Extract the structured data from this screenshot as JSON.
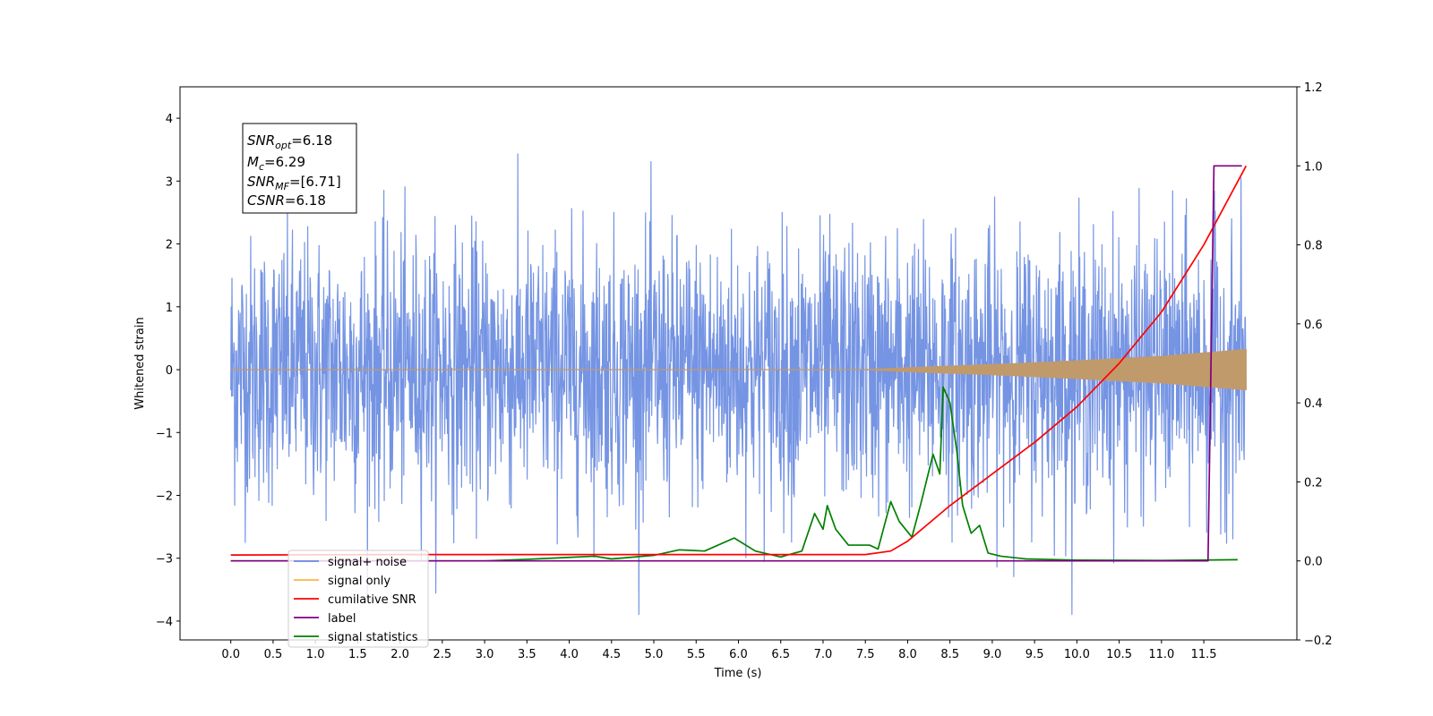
{
  "chart_data": {
    "type": "line",
    "title": "",
    "xlabel": "Time (s)",
    "ylabel": "Whitened strain",
    "xlim": [
      -0.6,
      12.6
    ],
    "ylim": [
      -4.3,
      4.5
    ],
    "y2lim": [
      -0.2,
      1.2
    ],
    "grid": false,
    "legend_position": "lower-left",
    "x_ticks": [
      "0.0",
      "0.5",
      "1.0",
      "1.5",
      "2.0",
      "2.5",
      "3.0",
      "3.5",
      "4.0",
      "4.5",
      "5.0",
      "5.5",
      "6.0",
      "6.5",
      "7.0",
      "7.5",
      "8.0",
      "8.5",
      "9.0",
      "9.5",
      "10.0",
      "10.5",
      "11.0",
      "11.5"
    ],
    "y_ticks": [
      "4",
      "3",
      "2",
      "1",
      "0",
      "−1",
      "−2",
      "−3",
      "−4"
    ],
    "y2_ticks": [
      "1.2",
      "1.0",
      "0.8",
      "0.6",
      "0.4",
      "0.2",
      "0.0",
      "−0.2"
    ],
    "annotations": {
      "snr_opt": {
        "label": "SNR",
        "sub": "opt",
        "value": "=6.18"
      },
      "mc": {
        "label": "M",
        "sub": "c",
        "value": "=6.29"
      },
      "snr_mf": {
        "label": "SNR",
        "sub": "MF",
        "value": "=[6.71]"
      },
      "csnr": {
        "label": "CSNR",
        "value": "=6.18"
      }
    },
    "series": [
      {
        "name": "signal+ noise",
        "color": "#6688e0",
        "axis": "left",
        "description_range": [
          -3.9,
          4.1
        ],
        "x_range": [
          0.0,
          12.0
        ]
      },
      {
        "name": "signal only",
        "color": "#ffb347",
        "axis": "left",
        "envelope": [
          [
            0.0,
            0.0
          ],
          [
            7.5,
            0.0
          ],
          [
            8.0,
            0.03
          ],
          [
            9.0,
            0.08
          ],
          [
            10.0,
            0.14
          ],
          [
            11.0,
            0.21
          ],
          [
            12.0,
            0.32
          ]
        ]
      },
      {
        "name": "cumilative SNR",
        "color": "#ff0000",
        "axis": "right",
        "points": [
          [
            0.0,
            0.015
          ],
          [
            2.0,
            0.016
          ],
          [
            4.0,
            0.016
          ],
          [
            6.0,
            0.016
          ],
          [
            7.5,
            0.016
          ],
          [
            7.8,
            0.025
          ],
          [
            8.0,
            0.05
          ],
          [
            8.5,
            0.14
          ],
          [
            9.0,
            0.22
          ],
          [
            9.5,
            0.3
          ],
          [
            10.0,
            0.39
          ],
          [
            10.5,
            0.5
          ],
          [
            11.0,
            0.63
          ],
          [
            11.5,
            0.8
          ],
          [
            12.0,
            1.0
          ]
        ]
      },
      {
        "name": "label",
        "color": "#800080",
        "axis": "right",
        "points": [
          [
            0.0,
            0.0
          ],
          [
            11.55,
            0.0
          ],
          [
            11.62,
            1.0
          ],
          [
            11.95,
            1.0
          ]
        ]
      },
      {
        "name": "signal statistics",
        "color": "#008000",
        "axis": "right",
        "points": [
          [
            0.0,
            0.0
          ],
          [
            3.0,
            0.0
          ],
          [
            3.5,
            0.004
          ],
          [
            4.0,
            0.009
          ],
          [
            4.3,
            0.012
          ],
          [
            4.5,
            0.005
          ],
          [
            5.0,
            0.014
          ],
          [
            5.3,
            0.028
          ],
          [
            5.6,
            0.025
          ],
          [
            5.95,
            0.058
          ],
          [
            6.2,
            0.025
          ],
          [
            6.5,
            0.01
          ],
          [
            6.75,
            0.025
          ],
          [
            6.9,
            0.12
          ],
          [
            7.0,
            0.08
          ],
          [
            7.05,
            0.14
          ],
          [
            7.15,
            0.08
          ],
          [
            7.3,
            0.04
          ],
          [
            7.55,
            0.04
          ],
          [
            7.65,
            0.03
          ],
          [
            7.7,
            0.07
          ],
          [
            7.8,
            0.15
          ],
          [
            7.9,
            0.1
          ],
          [
            8.05,
            0.06
          ],
          [
            8.15,
            0.14
          ],
          [
            8.3,
            0.27
          ],
          [
            8.38,
            0.22
          ],
          [
            8.42,
            0.44
          ],
          [
            8.5,
            0.4
          ],
          [
            8.58,
            0.28
          ],
          [
            8.65,
            0.14
          ],
          [
            8.75,
            0.07
          ],
          [
            8.85,
            0.09
          ],
          [
            8.95,
            0.02
          ],
          [
            9.1,
            0.012
          ],
          [
            9.4,
            0.005
          ],
          [
            10.0,
            0.002
          ],
          [
            11.0,
            0.001
          ],
          [
            11.9,
            0.003
          ]
        ]
      }
    ]
  }
}
